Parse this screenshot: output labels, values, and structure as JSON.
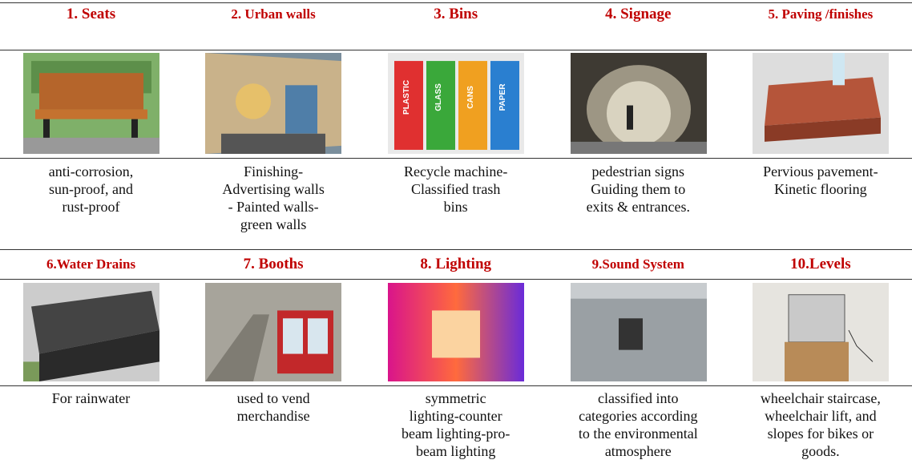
{
  "rows": [
    {
      "items": [
        {
          "title": "1. Seats",
          "description": [
            "anti-corrosion,",
            "sun-proof, and",
            "rust-proof"
          ]
        },
        {
          "title": "2. Urban walls",
          "description": [
            "Finishing-",
            "Advertising walls",
            "- Painted walls-",
            "green walls"
          ]
        },
        {
          "title": "3. Bins",
          "image_labels": [
            "PLASTIC",
            "GLASS",
            "CANS",
            "PAPER"
          ],
          "description": [
            "Recycle machine-",
            "Classified trash",
            "bins"
          ]
        },
        {
          "title": "4. Signage",
          "description": [
            "pedestrian signs",
            "Guiding them to",
            "exits & entrances."
          ]
        },
        {
          "title": "5. Paving /finishes",
          "description": [
            "Pervious pavement-",
            "Kinetic flooring"
          ]
        }
      ]
    },
    {
      "items": [
        {
          "title": "6.Water Drains",
          "description": [
            "For rainwater"
          ]
        },
        {
          "title": "7. Booths",
          "description": [
            "used to vend",
            "merchandise"
          ]
        },
        {
          "title": "8. Lighting",
          "description": [
            "symmetric",
            "lighting-counter",
            "beam lighting-pro-",
            "beam lighting"
          ]
        },
        {
          "title": "9.Sound System",
          "description": [
            "classified into",
            "categories according",
            "to the environmental",
            "atmosphere"
          ]
        },
        {
          "title": "10.Levels",
          "description": [
            "wheelchair staircase,",
            "wheelchair lift, and",
            "slopes for bikes or",
            "goods."
          ]
        }
      ]
    }
  ]
}
